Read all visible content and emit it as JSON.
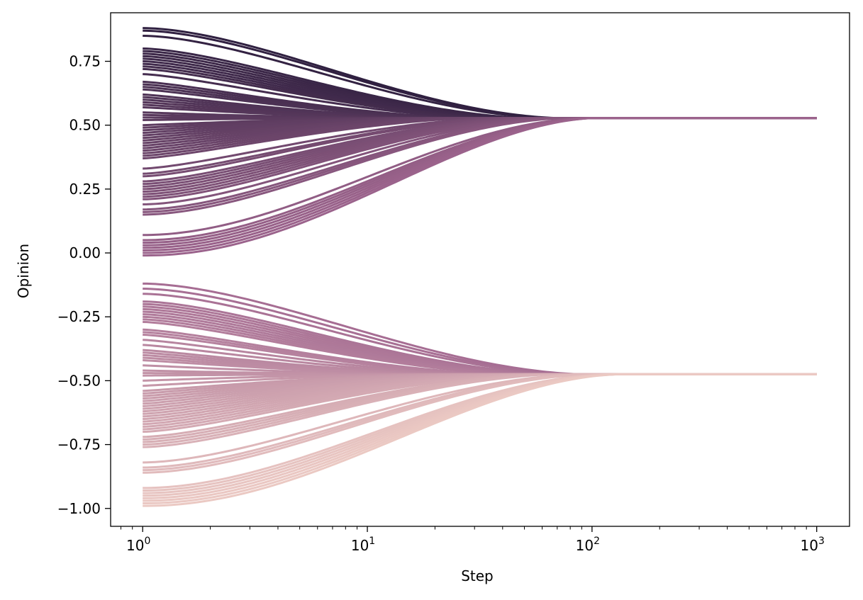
{
  "chart_data": {
    "type": "line",
    "title": "",
    "xlabel": "Step",
    "ylabel": "Opinion",
    "xscale": "log",
    "xlim": [
      0.72,
      1400
    ],
    "ylim": [
      -1.07,
      0.94
    ],
    "x_range": [
      1,
      1000
    ],
    "grid": false,
    "legend": "none",
    "colormap": {
      "dark": "#2d1e3e",
      "mid": "#a0668f",
      "light": "#eccac4"
    },
    "x_ticks": [
      {
        "value": 1,
        "base": "10",
        "exp": "0"
      },
      {
        "value": 10,
        "base": "10",
        "exp": "1"
      },
      {
        "value": 100,
        "base": "10",
        "exp": "2"
      },
      {
        "value": 1000,
        "base": "10",
        "exp": "3"
      }
    ],
    "y_ticks": [
      {
        "value": 0.75,
        "label": "0.75"
      },
      {
        "value": 0.5,
        "label": "0.50"
      },
      {
        "value": 0.25,
        "label": "0.25"
      },
      {
        "value": 0.0,
        "label": "0.00"
      },
      {
        "value": -0.25,
        "label": "−0.25"
      },
      {
        "value": -0.5,
        "label": "−0.50"
      },
      {
        "value": -0.75,
        "label": "−0.75"
      },
      {
        "value": -1.0,
        "label": "−1.00"
      }
    ],
    "clusters": [
      {
        "converges_to": 0.528,
        "settle_step": 100,
        "initial_opinions": [
          0.88,
          0.87,
          0.85,
          0.8,
          0.79,
          0.78,
          0.77,
          0.76,
          0.75,
          0.74,
          0.73,
          0.72,
          0.7,
          0.67,
          0.66,
          0.65,
          0.64,
          0.62,
          0.61,
          0.6,
          0.59,
          0.58,
          0.57,
          0.55,
          0.54,
          0.53,
          0.52,
          0.5,
          0.49,
          0.48,
          0.47,
          0.46,
          0.45,
          0.44,
          0.43,
          0.42,
          0.41,
          0.4,
          0.39,
          0.38,
          0.37,
          0.33,
          0.31,
          0.3,
          0.28,
          0.27,
          0.26,
          0.25,
          0.24,
          0.23,
          0.22,
          0.21,
          0.19,
          0.17,
          0.16,
          0.15,
          0.07,
          0.05,
          0.04,
          0.03,
          0.02,
          0.01,
          0.0,
          -0.01
        ]
      },
      {
        "converges_to": -0.475,
        "settle_step": 130,
        "initial_opinions": [
          -0.12,
          -0.14,
          -0.16,
          -0.19,
          -0.2,
          -0.21,
          -0.22,
          -0.23,
          -0.24,
          -0.25,
          -0.26,
          -0.27,
          -0.3,
          -0.31,
          -0.32,
          -0.34,
          -0.36,
          -0.38,
          -0.39,
          -0.4,
          -0.41,
          -0.42,
          -0.44,
          -0.46,
          -0.47,
          -0.48,
          -0.5,
          -0.52,
          -0.54,
          -0.55,
          -0.56,
          -0.57,
          -0.58,
          -0.59,
          -0.6,
          -0.61,
          -0.62,
          -0.63,
          -0.64,
          -0.65,
          -0.66,
          -0.67,
          -0.68,
          -0.69,
          -0.7,
          -0.72,
          -0.73,
          -0.74,
          -0.75,
          -0.76,
          -0.82,
          -0.84,
          -0.85,
          -0.86,
          -0.92,
          -0.93,
          -0.94,
          -0.95,
          -0.96,
          -0.97,
          -0.98,
          -0.99
        ]
      }
    ]
  }
}
